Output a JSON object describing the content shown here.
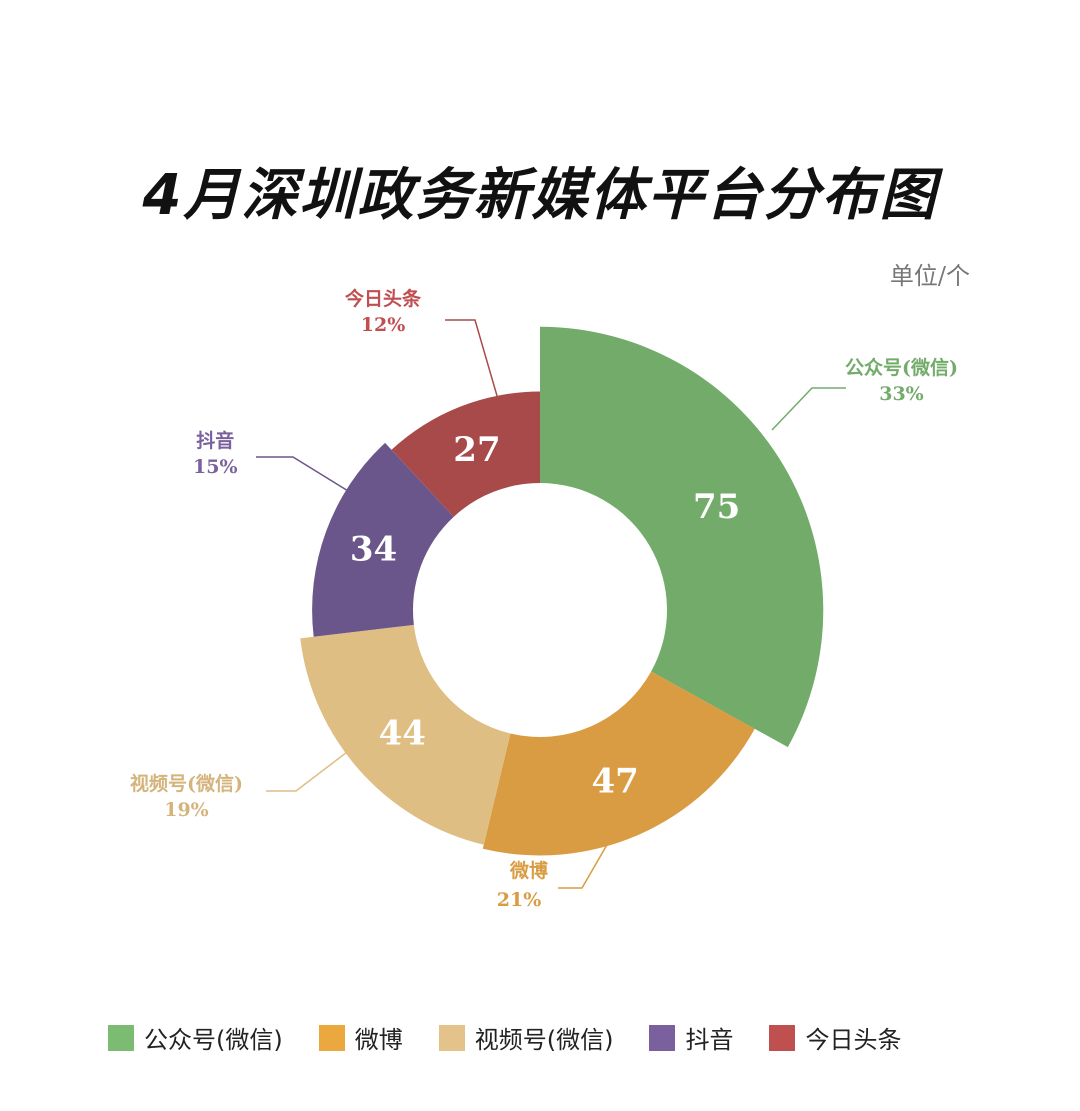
{
  "chart_data": {
    "type": "pie",
    "variant": "rose-donut",
    "title": "4月深圳政务新媒体平台分布图",
    "unit": "单位/个",
    "categories": [
      "公众号(微信)",
      "微博",
      "视频号(微信)",
      "抖音",
      "今日头条"
    ],
    "values": [
      75,
      47,
      44,
      34,
      27
    ],
    "percent_labels": [
      "33%",
      "21%",
      "19%",
      "15%",
      "12%"
    ],
    "colors": [
      "#72ab6a",
      "#d99c43",
      "#dfbe83",
      "#6b568b",
      "#a84a4a"
    ],
    "legend_colors": [
      "#7bbc72",
      "#eaa83e",
      "#e3c389",
      "#7a619e",
      "#c04f4f"
    ],
    "legend": "bottom"
  }
}
